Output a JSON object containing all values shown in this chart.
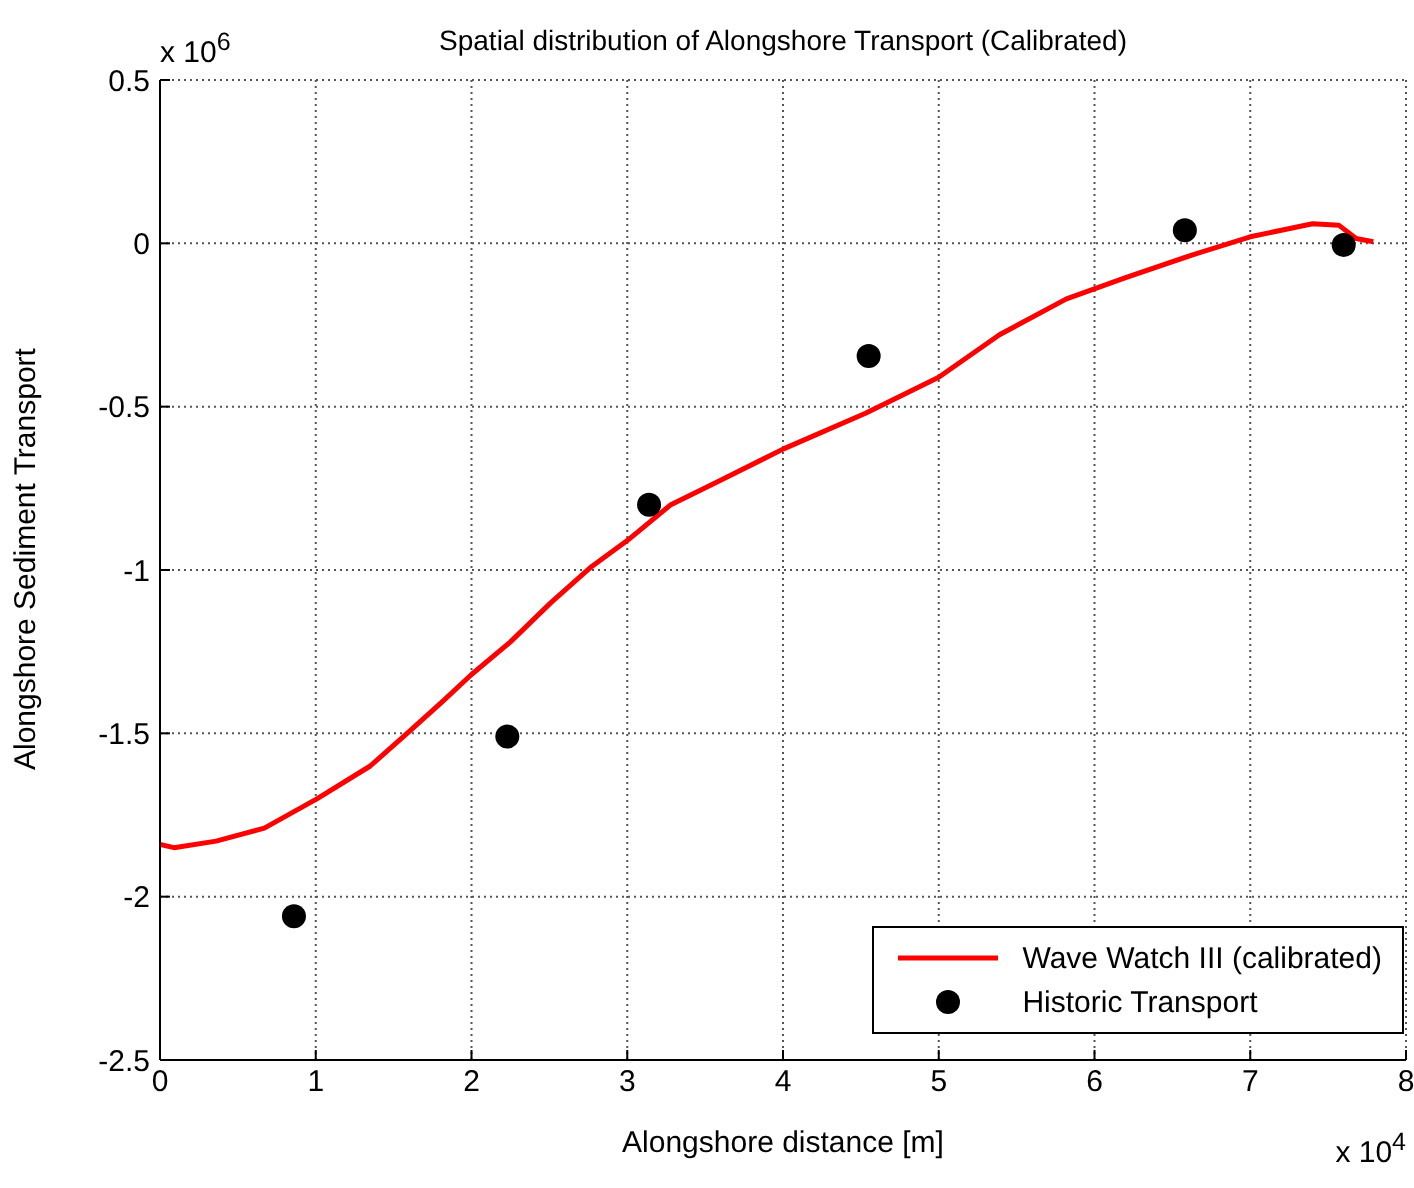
{
  "chart_data": {
    "type": "line",
    "title": "Spatial distribution of Alongshore Transport (Calibrated)",
    "xlabel": "Alongshore distance [m]",
    "ylabel": "Alongshore Sediment Transport",
    "annotations": [
      "x 10$^{6}$",
      "x 10$^{4}$"
    ],
    "xlim": [
      0,
      8
    ],
    "xticks": [
      0,
      1,
      2,
      3,
      4,
      5,
      6,
      7,
      8
    ],
    "ylim": [
      -2.5,
      0.5
    ],
    "yticks": [
      -2.5,
      -2,
      -1.5,
      -1,
      -0.5,
      0,
      0.5
    ],
    "grid": true,
    "legend": "bottom right",
    "series": [
      {
        "name": "Wave Watch III (calibrated)",
        "color": "#ff0000",
        "marker": "none",
        "line_style": "solid",
        "x": [
          0,
          0.09,
          0.36,
          0.67,
          1.01,
          1.35,
          1.61,
          1.82,
          2.0,
          2.25,
          2.51,
          2.77,
          3.0,
          3.28,
          3.58,
          4.0,
          4.53,
          5.0,
          5.39,
          5.82,
          6.2,
          6.63,
          7.0,
          7.4,
          7.57,
          7.68,
          7.79
        ],
        "values": [
          -1.84,
          -1.85,
          -1.83,
          -1.79,
          -1.7,
          -1.6,
          -1.49,
          -1.4,
          -1.32,
          -1.22,
          -1.1,
          -0.99,
          -0.91,
          -0.8,
          -0.73,
          -0.63,
          -0.52,
          -0.41,
          -0.28,
          -0.17,
          -0.105,
          -0.035,
          0.02,
          0.06,
          0.055,
          0.015,
          0.005
        ]
      },
      {
        "name": "Historic Transport",
        "type": "scatter",
        "color": "#000000",
        "marker": "circle",
        "x": [
          0.86,
          2.23,
          3.14,
          4.55,
          6.58,
          7.6
        ],
        "values": [
          -2.06,
          -1.51,
          -0.8,
          -0.345,
          0.04,
          -0.005
        ]
      }
    ]
  }
}
